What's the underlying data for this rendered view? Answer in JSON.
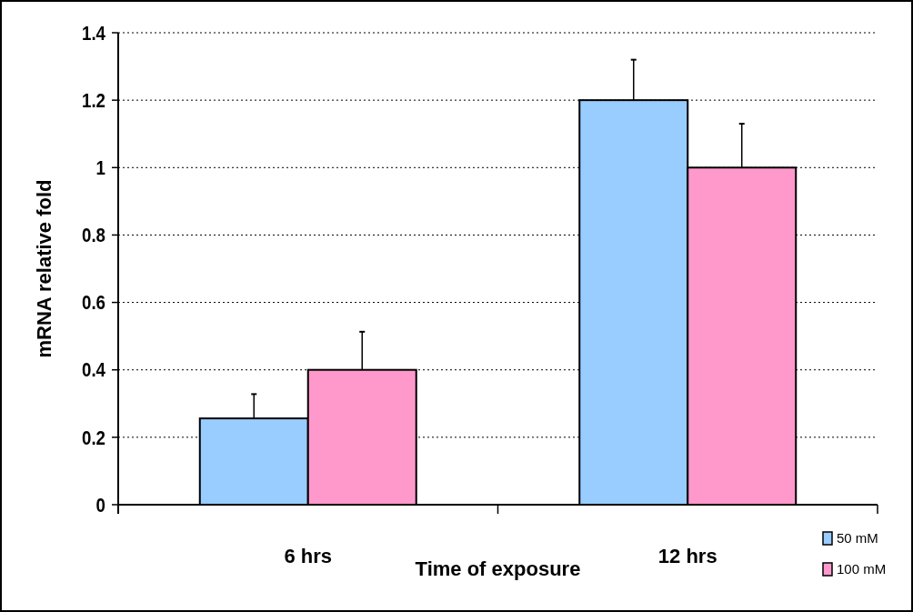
{
  "chart_data": {
    "type": "bar",
    "categories": [
      "6 hrs",
      "12 hrs"
    ],
    "series": [
      {
        "name": "50 mM",
        "color": "#99ccff",
        "values": [
          0.256,
          1.2
        ],
        "errors": [
          [
            0.256,
            0.328
          ],
          [
            1.2,
            1.32
          ]
        ]
      },
      {
        "name": "100 mM",
        "color": "#ff99cc",
        "values": [
          0.4,
          1.0
        ],
        "errors": [
          [
            0.4,
            0.513
          ],
          [
            1.0,
            1.13
          ]
        ]
      }
    ],
    "xlabel": "Time of exposure",
    "ylabel": "mRNA relative fold",
    "ylim": [
      0,
      1.4
    ],
    "yticks": [
      0,
      0.2,
      0.4,
      0.6,
      0.8,
      1,
      1.2,
      1.4
    ],
    "grid": "y",
    "legend": "bottom right"
  }
}
